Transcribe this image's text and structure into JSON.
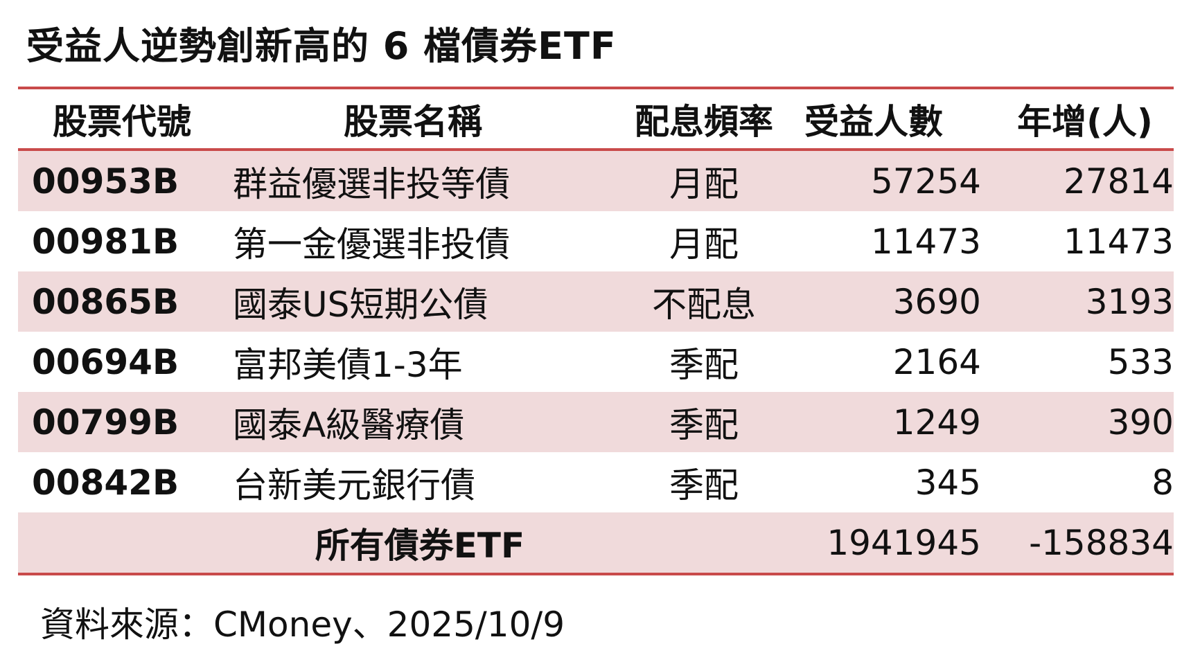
{
  "title": "受益人逆勢創新高的 6 檔債券ETF",
  "colors": {
    "rule": "#c94a4a",
    "shade": "#f0dadb"
  },
  "chart_data": {
    "type": "table",
    "columns": [
      "股票代號",
      "股票名稱",
      "配息頻率",
      "受益人數",
      "年增(人)"
    ],
    "rows": [
      {
        "code": "00953B",
        "name": "群益優選非投等債",
        "freq": "月配",
        "holders": "57254",
        "growth": "27814"
      },
      {
        "code": "00981B",
        "name": "第一金優選非投債",
        "freq": "月配",
        "holders": "11473",
        "growth": "11473"
      },
      {
        "code": "00865B",
        "name": "國泰US短期公債",
        "freq": "不配息",
        "holders": "3690",
        "growth": "3193"
      },
      {
        "code": "00694B",
        "name": "富邦美債1-3年",
        "freq": "季配",
        "holders": "2164",
        "growth": "533"
      },
      {
        "code": "00799B",
        "name": "國泰A級醫療債",
        "freq": "季配",
        "holders": "1249",
        "growth": "390"
      },
      {
        "code": "00842B",
        "name": "台新美元銀行債",
        "freq": "季配",
        "holders": "345",
        "growth": "8"
      }
    ],
    "total": {
      "label": "所有債券ETF",
      "holders": "1941945",
      "growth": "-158834"
    }
  },
  "source": "資料來源：CMoney、2025/10/9"
}
